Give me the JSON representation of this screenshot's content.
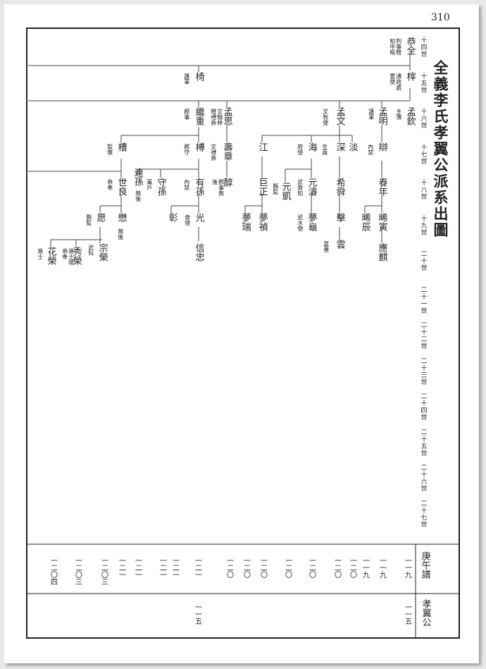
{
  "page_number": "310",
  "title": "全義李氏孝翼公派系出圖",
  "generations": [
    "十四世",
    "十五世",
    "十六世",
    "十七世",
    "十八世",
    "十九世",
    "二十世",
    "二十一世",
    "二十二世",
    "二十三世",
    "二十四世",
    "二十五世",
    "二十六世",
    "二十七世"
  ],
  "nodes": [
    {
      "name": "恭全",
      "note": "判事贈知中樞"
    },
    {
      "name": "榟",
      "note": "通政處置使"
    },
    {
      "name": "孟欽",
      "note": "主簿"
    },
    {
      "name": "孟明",
      "note": "護軍"
    },
    {
      "name": "孟文",
      "note": "文牧使"
    },
    {
      "name": "孟思",
      "note": "文翰林贈禮叅"
    },
    {
      "name": "椅",
      "note": "護軍"
    },
    {
      "name": "繼重",
      "note": "郡事"
    },
    {
      "name": "榑",
      "note": "郡守"
    },
    {
      "name": "有孫",
      "note": "內禁"
    },
    {
      "name": "光",
      "note": "僉使"
    },
    {
      "name": "信忠"
    },
    {
      "name": "彰"
    },
    {
      "name": "守孫",
      "note": "萬戶"
    },
    {
      "name": "連孫",
      "note": "無後"
    },
    {
      "name": "槽",
      "note": "監察"
    },
    {
      "name": "世良",
      "note": "叅奉"
    },
    {
      "name": "懋",
      "note": "無後"
    },
    {
      "name": "愿",
      "note": "縣監"
    },
    {
      "name": "宗榮",
      "note": "武科"
    },
    {
      "name": "秀榮",
      "note": "進士陵叅奉"
    },
    {
      "name": "花榮",
      "note": "進士"
    },
    {
      "name": "壽章",
      "note": "文禮叅"
    },
    {
      "name": "醇",
      "note": "郡事無後"
    },
    {
      "name": "江"
    },
    {
      "name": "巨正"
    },
    {
      "name": "夢禎"
    },
    {
      "name": "夢瑞"
    },
    {
      "name": "海",
      "note": "府使"
    },
    {
      "name": "元濬",
      "note": "武僉知"
    },
    {
      "name": "夢龜",
      "note": "武水使"
    },
    {
      "name": "元凱",
      "note": "縣監"
    },
    {
      "name": "深",
      "note": "生員"
    },
    {
      "name": "希舜"
    },
    {
      "name": "擊"
    },
    {
      "name": "雲",
      "note": "嘉善"
    },
    {
      "name": "淡"
    },
    {
      "name": "辯",
      "note": "內禁"
    },
    {
      "name": "春年"
    },
    {
      "name": "晞寅"
    },
    {
      "name": "應麒"
    },
    {
      "name": "晞辰"
    }
  ],
  "footer": {
    "row1": {
      "label": "庚午譜",
      "entries": [
        "一一九",
        "一一九",
        "一一九",
        "一二〇",
        "一二〇",
        "一二〇",
        "一二〇",
        "一二〇",
        "一二〇",
        "一二〇",
        "一二一",
        "一二一",
        "一二一",
        "一二一",
        "一二一",
        "一二〇三",
        "一二〇三",
        "一二〇四"
      ]
    },
    "row2": {
      "label": "孝翼公",
      "entries": [
        "一一五",
        "一一五"
      ]
    }
  }
}
